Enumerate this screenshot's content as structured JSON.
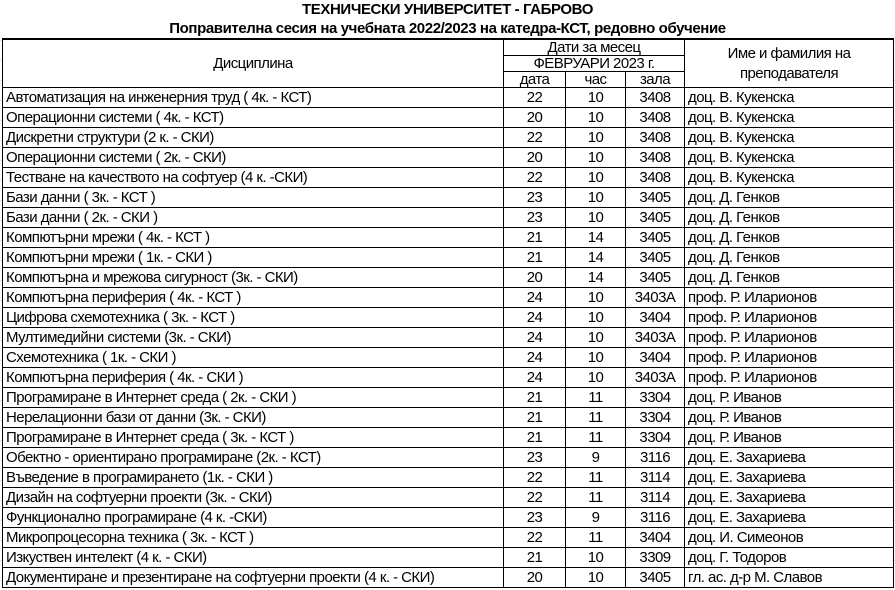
{
  "title": "ТЕХНИЧЕСКИ УНИВЕРСИТЕТ - ГАБРОВО",
  "subtitle": "Поправителна сесия на учебната 2022/2023 на катедра-КСТ, редовно обучение",
  "header": {
    "discipline": "Дисциплина",
    "dates_group": "Дати за месец",
    "month": "ФЕВРУАРИ 2023 г.",
    "date": "дата",
    "hour": "час",
    "room": "зала",
    "teacher": "Име и фамилия на преподавателя"
  },
  "rows": [
    {
      "discipline": "Автоматизация на инженерния труд ( 4к. - КСТ)",
      "date": "22",
      "hour": "10",
      "room": "3408",
      "teacher": "доц. В. Кукенска"
    },
    {
      "discipline": "Операционни системи ( 4к. - КСТ)",
      "date": "20",
      "hour": "10",
      "room": "3408",
      "teacher": "доц. В. Кукенска"
    },
    {
      "discipline": "Дискретни структури (2 к. - СКИ)",
      "date": "22",
      "hour": "10",
      "room": "3408",
      "teacher": "доц. В. Кукенска"
    },
    {
      "discipline": "Операционни системи ( 2к. - СКИ)",
      "date": "20",
      "hour": "10",
      "room": "3408",
      "teacher": "доц. В. Кукенска"
    },
    {
      "discipline": "Тестване на качеството на софтуер (4 к. -СКИ)",
      "date": "22",
      "hour": "10",
      "room": "3408",
      "teacher": "доц. В. Кукенска"
    },
    {
      "discipline": "Бази данни ( 3к. - КСТ )",
      "date": "23",
      "hour": "10",
      "room": "3405",
      "teacher": "доц. Д. Генков"
    },
    {
      "discipline": "Бази данни ( 2к. - СКИ )",
      "date": "23",
      "hour": "10",
      "room": "3405",
      "teacher": "доц. Д. Генков"
    },
    {
      "discipline": "Компютърни мрежи ( 4к. - КСТ )",
      "date": "21",
      "hour": "14",
      "room": "3405",
      "teacher": "доц. Д. Генков"
    },
    {
      "discipline": "Компютърни мрежи ( 1к. - СКИ )",
      "date": "21",
      "hour": "14",
      "room": "3405",
      "teacher": "доц. Д. Генков"
    },
    {
      "discipline": "Компютърна и мрежова сигурност (3к. - СКИ)",
      "date": "20",
      "hour": "14",
      "room": "3405",
      "teacher": "доц. Д. Генков"
    },
    {
      "discipline": "Компютърна периферия ( 4к. - КСТ )",
      "date": "24",
      "hour": "10",
      "room": "3403А",
      "teacher": "проф. Р. Иларионов"
    },
    {
      "discipline": "Цифрова схемотехника ( 3к. - КСТ )",
      "date": "24",
      "hour": "10",
      "room": "3404",
      "teacher": "проф. Р. Иларионов"
    },
    {
      "discipline": "Мултимедийни системи (3к. - СКИ)",
      "date": "24",
      "hour": "10",
      "room": "3403А",
      "teacher": "проф. Р. Иларионов"
    },
    {
      "discipline": "Схемотехника ( 1к. - СКИ )",
      "date": "24",
      "hour": "10",
      "room": "3404",
      "teacher": "проф. Р. Иларионов"
    },
    {
      "discipline": "Компютърна периферия ( 4к. - СКИ )",
      "date": "24",
      "hour": "10",
      "room": "3403А",
      "teacher": "проф. Р. Иларионов"
    },
    {
      "discipline": "Програмиране в Интернет среда ( 2к. - СКИ )",
      "date": "21",
      "hour": "11",
      "room": "3304",
      "teacher": "доц. Р. Иванов"
    },
    {
      "discipline": "Нерелационни бази от данни (3к. - СКИ)",
      "date": "21",
      "hour": "11",
      "room": "3304",
      "teacher": "доц. Р. Иванов"
    },
    {
      "discipline": "Програмиране в Интернет среда ( 3к. - КСТ )",
      "date": "21",
      "hour": "11",
      "room": "3304",
      "teacher": "доц. Р. Иванов"
    },
    {
      "discipline": "Обектно - ориентирано програмиране (2к. - КСТ)",
      "date": "23",
      "hour": "9",
      "room": "3116",
      "teacher": "доц. Е. Захариева"
    },
    {
      "discipline": "Въведение в програмирането (1к. - СКИ )",
      "date": "22",
      "hour": "11",
      "room": "3114",
      "teacher": "доц. Е. Захариева"
    },
    {
      "discipline": "Дизайн на софтуерни проекти (3к. - СКИ)",
      "date": "22",
      "hour": "11",
      "room": "3114",
      "teacher": "доц. Е. Захариева"
    },
    {
      "discipline": "Функционално програмиране (4 к. -СКИ)",
      "date": "23",
      "hour": "9",
      "room": "3116",
      "teacher": "доц. Е. Захариева"
    },
    {
      "discipline": "Микропроцесорна техника ( 3к. - КСТ )",
      "date": "22",
      "hour": "11",
      "room": "3404",
      "teacher": "доц. И. Симеонов"
    },
    {
      "discipline": "Изкуствен интелект (4 к. - СКИ)",
      "date": "21",
      "hour": "10",
      "room": "3309",
      "teacher": "доц. Г. Тодоров"
    },
    {
      "discipline": "Документиране и презентиране на софтуерни проекти (4 к. - СКИ)",
      "date": "20",
      "hour": "10",
      "room": "3405",
      "teacher": "гл. ас. д-р М. Славов"
    }
  ]
}
